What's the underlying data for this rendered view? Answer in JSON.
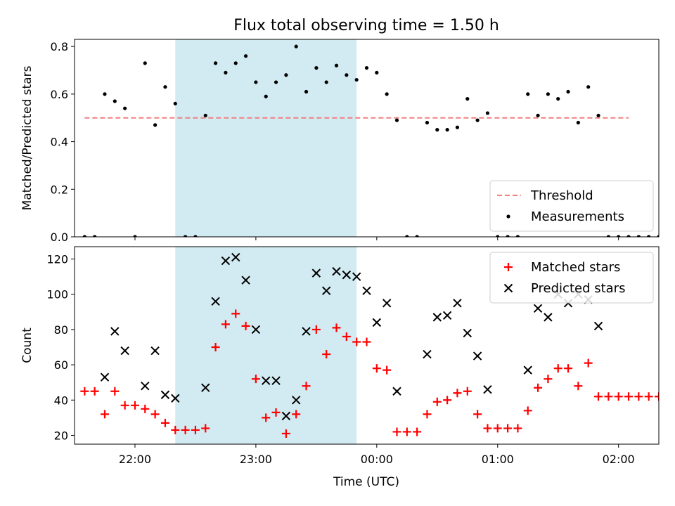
{
  "chart_data": {
    "type": "scatter",
    "title": "Flux total observing time = 1.50 h",
    "xlabel": "Time (UTC)",
    "x_domain": [
      "21:30",
      "02:20"
    ],
    "x_ticks": [
      "22:00",
      "23:00",
      "00:00",
      "01:00",
      "02:00"
    ],
    "highlight_span": {
      "start": "22:20",
      "end": "23:50",
      "color": "#add8e6"
    },
    "panels": [
      {
        "ylabel": "Matched/Predicted stars",
        "ylim": [
          0,
          0.83
        ],
        "y_ticks": [
          "0.0",
          "0.2",
          "0.4",
          "0.6",
          "0.8"
        ],
        "legend_position": "lower-right",
        "threshold": {
          "name": "Threshold",
          "value": 0.5,
          "x_start": "21:35",
          "x_end": "02:05",
          "color": "#f08080",
          "style": "dashed"
        },
        "series": [
          {
            "name": "Measurements",
            "marker": "dot",
            "color": "#000000",
            "points": [
              [
                "21:35",
                0.0
              ],
              [
                "21:40",
                0.0
              ],
              [
                "21:45",
                0.6
              ],
              [
                "21:50",
                0.57
              ],
              [
                "21:55",
                0.54
              ],
              [
                "22:00",
                0.0
              ],
              [
                "22:05",
                0.73
              ],
              [
                "22:10",
                0.47
              ],
              [
                "22:15",
                0.63
              ],
              [
                "22:20",
                0.56
              ],
              [
                "22:25",
                0.0
              ],
              [
                "22:30",
                0.0
              ],
              [
                "22:35",
                0.51
              ],
              [
                "22:40",
                0.73
              ],
              [
                "22:45",
                0.69
              ],
              [
                "22:50",
                0.73
              ],
              [
                "22:55",
                0.76
              ],
              [
                "23:00",
                0.65
              ],
              [
                "23:05",
                0.59
              ],
              [
                "23:10",
                0.65
              ],
              [
                "23:15",
                0.68
              ],
              [
                "23:20",
                0.8
              ],
              [
                "23:25",
                0.61
              ],
              [
                "23:30",
                0.71
              ],
              [
                "23:35",
                0.65
              ],
              [
                "23:40",
                0.72
              ],
              [
                "23:45",
                0.68
              ],
              [
                "23:50",
                0.66
              ],
              [
                "23:55",
                0.71
              ],
              [
                "00:00",
                0.69
              ],
              [
                "00:05",
                0.6
              ],
              [
                "00:10",
                0.49
              ],
              [
                "00:15",
                0.0
              ],
              [
                "00:20",
                0.0
              ],
              [
                "00:25",
                0.48
              ],
              [
                "00:30",
                0.45
              ],
              [
                "00:35",
                0.45
              ],
              [
                "00:40",
                0.46
              ],
              [
                "00:45",
                0.58
              ],
              [
                "00:50",
                0.49
              ],
              [
                "00:55",
                0.52
              ],
              [
                "01:00",
                0.0
              ],
              [
                "01:05",
                0.0
              ],
              [
                "01:10",
                0.0
              ],
              [
                "01:15",
                0.6
              ],
              [
                "01:20",
                0.51
              ],
              [
                "01:25",
                0.6
              ],
              [
                "01:30",
                0.58
              ],
              [
                "01:35",
                0.61
              ],
              [
                "01:40",
                0.48
              ],
              [
                "01:45",
                0.63
              ],
              [
                "01:50",
                0.51
              ],
              [
                "01:55",
                0.0
              ],
              [
                "02:00",
                0.0
              ],
              [
                "02:05",
                0.0
              ],
              [
                "02:10",
                0.0
              ],
              [
                "02:15",
                0.0
              ],
              [
                "02:20",
                0.0
              ]
            ]
          }
        ]
      },
      {
        "ylabel": "Count",
        "ylim": [
          15,
          127
        ],
        "y_ticks": [
          "20",
          "40",
          "60",
          "80",
          "100",
          "120"
        ],
        "legend_position": "upper-right",
        "series": [
          {
            "name": "Matched stars",
            "marker": "plus",
            "color": "#ff0000",
            "points": [
              [
                "21:35",
                45
              ],
              [
                "21:40",
                45
              ],
              [
                "21:45",
                32
              ],
              [
                "21:50",
                45
              ],
              [
                "21:55",
                37
              ],
              [
                "22:00",
                37
              ],
              [
                "22:05",
                35
              ],
              [
                "22:10",
                32
              ],
              [
                "22:15",
                27
              ],
              [
                "22:20",
                23
              ],
              [
                "22:25",
                23
              ],
              [
                "22:30",
                23
              ],
              [
                "22:35",
                24
              ],
              [
                "22:40",
                70
              ],
              [
                "22:45",
                83
              ],
              [
                "22:50",
                89
              ],
              [
                "22:55",
                82
              ],
              [
                "23:00",
                52
              ],
              [
                "23:05",
                30
              ],
              [
                "23:10",
                33
              ],
              [
                "23:15",
                21
              ],
              [
                "23:20",
                32
              ],
              [
                "23:25",
                48
              ],
              [
                "23:30",
                80
              ],
              [
                "23:35",
                66
              ],
              [
                "23:40",
                81
              ],
              [
                "23:45",
                76
              ],
              [
                "23:50",
                73
              ],
              [
                "23:55",
                73
              ],
              [
                "00:00",
                58
              ],
              [
                "00:05",
                57
              ],
              [
                "00:10",
                22
              ],
              [
                "00:15",
                22
              ],
              [
                "00:20",
                22
              ],
              [
                "00:25",
                32
              ],
              [
                "00:30",
                39
              ],
              [
                "00:35",
                40
              ],
              [
                "00:40",
                44
              ],
              [
                "00:45",
                45
              ],
              [
                "00:50",
                32
              ],
              [
                "00:55",
                24
              ],
              [
                "01:00",
                24
              ],
              [
                "01:05",
                24
              ],
              [
                "01:10",
                24
              ],
              [
                "01:15",
                34
              ],
              [
                "01:20",
                47
              ],
              [
                "01:25",
                52
              ],
              [
                "01:30",
                58
              ],
              [
                "01:35",
                58
              ],
              [
                "01:40",
                48
              ],
              [
                "01:45",
                61
              ],
              [
                "01:50",
                42
              ],
              [
                "01:55",
                42
              ],
              [
                "02:00",
                42
              ],
              [
                "02:05",
                42
              ],
              [
                "02:10",
                42
              ],
              [
                "02:15",
                42
              ],
              [
                "02:20",
                42
              ]
            ]
          },
          {
            "name": "Predicted stars",
            "marker": "x",
            "color": "#000000",
            "points": [
              [
                "21:45",
                53
              ],
              [
                "21:50",
                79
              ],
              [
                "21:55",
                68
              ],
              [
                "22:05",
                48
              ],
              [
                "22:10",
                68
              ],
              [
                "22:15",
                43
              ],
              [
                "22:20",
                41
              ],
              [
                "22:35",
                47
              ],
              [
                "22:40",
                96
              ],
              [
                "22:45",
                119
              ],
              [
                "22:50",
                121
              ],
              [
                "22:55",
                108
              ],
              [
                "23:00",
                80
              ],
              [
                "23:05",
                51
              ],
              [
                "23:10",
                51
              ],
              [
                "23:15",
                31
              ],
              [
                "23:20",
                40
              ],
              [
                "23:25",
                79
              ],
              [
                "23:30",
                112
              ],
              [
                "23:35",
                102
              ],
              [
                "23:40",
                113
              ],
              [
                "23:45",
                111
              ],
              [
                "23:50",
                110
              ],
              [
                "23:55",
                102
              ],
              [
                "00:00",
                84
              ],
              [
                "00:05",
                95
              ],
              [
                "00:10",
                45
              ],
              [
                "00:25",
                66
              ],
              [
                "00:30",
                87
              ],
              [
                "00:35",
                88
              ],
              [
                "00:40",
                95
              ],
              [
                "00:45",
                78
              ],
              [
                "00:50",
                65
              ],
              [
                "00:55",
                46
              ],
              [
                "01:15",
                57
              ],
              [
                "01:20",
                92
              ],
              [
                "01:25",
                87
              ],
              [
                "01:30",
                100
              ],
              [
                "01:35",
                95
              ],
              [
                "01:40",
                100
              ],
              [
                "01:45",
                97
              ],
              [
                "01:50",
                82
              ]
            ]
          }
        ]
      }
    ]
  }
}
